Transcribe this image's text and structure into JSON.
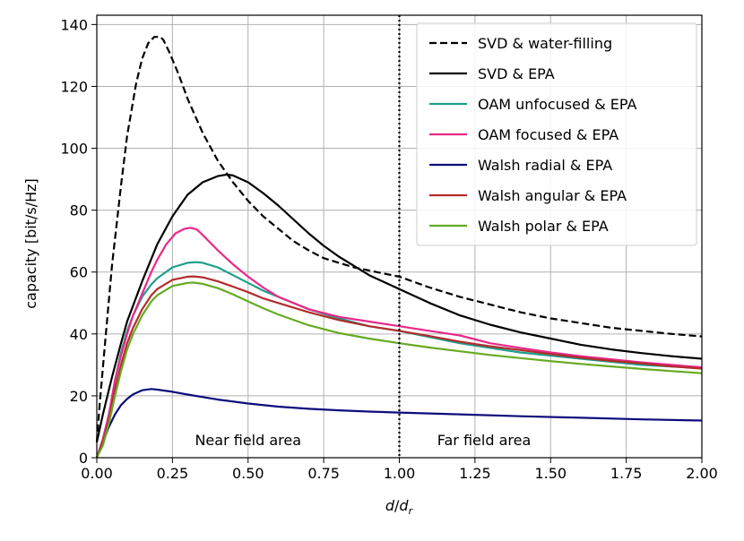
{
  "chart_data": {
    "type": "line",
    "xlabel_main": "d",
    "xlabel_denom": "d",
    "xlabel_sub": "r",
    "ylabel": "capacity [bit/s/Hz]",
    "xlim": [
      0,
      2
    ],
    "ylim": [
      0,
      143
    ],
    "x_ticks": [
      0,
      0.25,
      0.5,
      0.75,
      1,
      1.25,
      1.5,
      1.75,
      2
    ],
    "x_tick_labels": [
      "0.00",
      "0.25",
      "0.50",
      "0.75",
      "1.00",
      "1.25",
      "1.50",
      "1.75",
      "2.00"
    ],
    "y_ticks": [
      0,
      20,
      40,
      60,
      80,
      100,
      120,
      140
    ],
    "y_tick_labels": [
      "0",
      "20",
      "40",
      "60",
      "80",
      "100",
      "120",
      "140"
    ],
    "grid": true,
    "legend_position": "top-right",
    "annotations": [
      {
        "text": "Near field area",
        "x": 0.5,
        "y": 4
      },
      {
        "text": "Far field area",
        "x": 1.28,
        "y": 4
      }
    ],
    "vline": {
      "x": 1.0,
      "style": "dotted",
      "color": "#000000"
    },
    "series": [
      {
        "name": "SVD & water-filling",
        "color": "#000000",
        "dash": "dashed",
        "x": [
          0,
          0.01,
          0.03,
          0.05,
          0.08,
          0.1,
          0.13,
          0.15,
          0.17,
          0.19,
          0.2,
          0.21,
          0.22,
          0.24,
          0.27,
          0.3,
          0.35,
          0.4,
          0.45,
          0.5,
          0.55,
          0.6,
          0.65,
          0.7,
          0.75,
          0.8,
          0.85,
          0.9,
          0.95,
          1.0,
          1.1,
          1.2,
          1.3,
          1.4,
          1.5,
          1.6,
          1.7,
          1.8,
          1.9,
          2.0
        ],
        "y": [
          5,
          18,
          40,
          62,
          88,
          104,
          121,
          129,
          134,
          136,
          136,
          136,
          135,
          131,
          124,
          116,
          105,
          96,
          89,
          83,
          78,
          74,
          70,
          67,
          64.5,
          63,
          61.5,
          60.5,
          59.5,
          58.5,
          55,
          52,
          49.5,
          47,
          45,
          43.5,
          42,
          41,
          40,
          39.2
        ]
      },
      {
        "name": "SVD & EPA",
        "color": "#000000",
        "dash": "solid",
        "x": [
          0,
          0.02,
          0.05,
          0.08,
          0.1,
          0.15,
          0.2,
          0.25,
          0.3,
          0.35,
          0.4,
          0.43,
          0.45,
          0.5,
          0.55,
          0.6,
          0.65,
          0.7,
          0.75,
          0.8,
          0.9,
          1.0,
          1.1,
          1.2,
          1.3,
          1.4,
          1.5,
          1.6,
          1.7,
          1.8,
          1.9,
          2.0
        ],
        "y": [
          5,
          14,
          26,
          37,
          44,
          57,
          69,
          78,
          85,
          89,
          91,
          91.5,
          91.2,
          89,
          85.5,
          81.5,
          77,
          72.5,
          68.5,
          65,
          59,
          54.5,
          50,
          46,
          43,
          40.5,
          38.5,
          36.5,
          35,
          33.8,
          32.8,
          32
        ]
      },
      {
        "name": "OAM unfocused & EPA",
        "color": "#1f9e89",
        "dash": "solid",
        "x": [
          0,
          0.02,
          0.04,
          0.06,
          0.08,
          0.1,
          0.12,
          0.15,
          0.18,
          0.2,
          0.25,
          0.3,
          0.33,
          0.35,
          0.4,
          0.45,
          0.5,
          0.55,
          0.6,
          0.7,
          0.8,
          0.9,
          1.0,
          1.1,
          1.2,
          1.3,
          1.4,
          1.5,
          1.6,
          1.7,
          1.8,
          1.9,
          2.0
        ],
        "y": [
          0,
          6,
          14,
          25,
          34,
          41,
          46,
          52,
          56,
          58,
          61.5,
          63,
          63.2,
          63,
          61.5,
          59,
          56.5,
          54,
          52,
          48,
          45,
          42.5,
          41,
          39,
          37,
          35.5,
          34,
          33,
          32,
          31,
          30,
          29.5,
          29
        ]
      },
      {
        "name": "OAM focused & EPA",
        "color": "#e7298a",
        "dash": "solid",
        "x": [
          0,
          0.02,
          0.04,
          0.06,
          0.08,
          0.1,
          0.12,
          0.15,
          0.18,
          0.2,
          0.23,
          0.26,
          0.29,
          0.31,
          0.33,
          0.35,
          0.4,
          0.45,
          0.5,
          0.55,
          0.6,
          0.7,
          0.8,
          0.9,
          1.0,
          1.1,
          1.2,
          1.3,
          1.4,
          1.5,
          1.6,
          1.7,
          1.8,
          1.9,
          2.0
        ],
        "y": [
          0,
          6,
          14,
          25,
          33,
          40,
          46,
          53,
          60,
          64,
          69,
          72.5,
          74,
          74.3,
          73.8,
          72,
          67,
          62.5,
          58.5,
          55,
          52,
          48,
          45.5,
          44,
          42.5,
          41,
          39.5,
          37,
          35.5,
          34,
          32.8,
          31.8,
          30.8,
          30,
          29.2
        ]
      },
      {
        "name": "Walsh radial & EPA",
        "color": "#0c0c7c",
        "dash": "solid",
        "x": [
          0,
          0.02,
          0.04,
          0.06,
          0.08,
          0.1,
          0.12,
          0.15,
          0.18,
          0.2,
          0.25,
          0.3,
          0.4,
          0.5,
          0.6,
          0.7,
          0.8,
          0.9,
          1.0,
          1.2,
          1.4,
          1.6,
          1.8,
          2.0
        ],
        "y": [
          0,
          5,
          10,
          14,
          17,
          19,
          20.5,
          21.8,
          22.2,
          22,
          21.3,
          20.4,
          18.8,
          17.5,
          16.5,
          15.8,
          15.3,
          14.9,
          14.6,
          14,
          13.4,
          12.9,
          12.4,
          12
        ]
      },
      {
        "name": "Walsh angular & EPA",
        "color": "#b22c2c",
        "dash": "solid",
        "x": [
          0,
          0.02,
          0.04,
          0.06,
          0.08,
          0.1,
          0.12,
          0.15,
          0.18,
          0.2,
          0.25,
          0.3,
          0.32,
          0.35,
          0.4,
          0.45,
          0.5,
          0.55,
          0.6,
          0.7,
          0.8,
          0.9,
          1.0,
          1.1,
          1.2,
          1.3,
          1.4,
          1.5,
          1.6,
          1.7,
          1.8,
          1.9,
          2.0
        ],
        "y": [
          0,
          5,
          12,
          22,
          30,
          37,
          42,
          48,
          52.5,
          54.5,
          57.5,
          58.5,
          58.6,
          58.3,
          57,
          55.3,
          53.5,
          51.5,
          50,
          47,
          44.5,
          42.5,
          41,
          39.3,
          37.5,
          36,
          34.8,
          33.5,
          32.3,
          31.3,
          30.5,
          29.5,
          28.8
        ]
      },
      {
        "name": "Walsh polar & EPA",
        "color": "#66aa22",
        "dash": "solid",
        "x": [
          0,
          0.02,
          0.04,
          0.06,
          0.08,
          0.1,
          0.12,
          0.15,
          0.18,
          0.2,
          0.25,
          0.3,
          0.32,
          0.35,
          0.4,
          0.45,
          0.5,
          0.55,
          0.6,
          0.7,
          0.8,
          0.9,
          1.0,
          1.1,
          1.2,
          1.3,
          1.4,
          1.5,
          1.6,
          1.7,
          1.8,
          1.9,
          2.0
        ],
        "y": [
          0,
          4,
          11,
          20,
          28,
          35,
          40,
          46,
          50.5,
          52.5,
          55.5,
          56.5,
          56.6,
          56.2,
          54.8,
          52.8,
          50.5,
          48.3,
          46.3,
          42.8,
          40.3,
          38.5,
          37,
          35.6,
          34.4,
          33.2,
          32.2,
          31.2,
          30.3,
          29.5,
          28.7,
          28,
          27.3
        ]
      }
    ]
  }
}
